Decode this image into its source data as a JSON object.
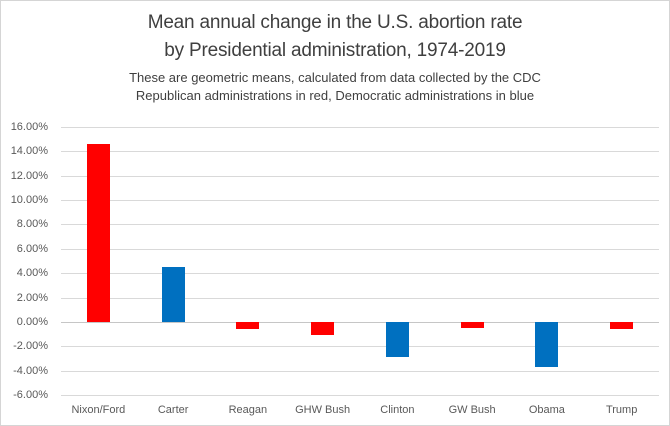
{
  "title": {
    "line1": "Mean annual change in the U.S. abortion rate",
    "line2": "by Presidential administration, 1974-2019"
  },
  "subtitle": {
    "line1": "These are geometric means, calculated from data collected by the CDC",
    "line2": "Republican administrations in red, Democratic administrations in blue"
  },
  "chart_data": {
    "type": "bar",
    "title": "Mean annual change in the U.S. abortion rate by Presidential administration, 1974-2019",
    "subtitle": [
      "These are geometric means, calculated from data collected by the CDC",
      "Republican administrations in red, Democratic administrations in blue"
    ],
    "categories": [
      "Nixon/Ford",
      "Carter",
      "Reagan",
      "GHW Bush",
      "Clinton",
      "GW Bush",
      "Obama",
      "Trump"
    ],
    "values": [
      14.6,
      4.5,
      -0.6,
      -1.1,
      -2.9,
      -0.5,
      -3.7,
      -0.6
    ],
    "parties": [
      "R",
      "D",
      "R",
      "R",
      "D",
      "R",
      "D",
      "R"
    ],
    "party_colors": {
      "R": "#ff0000",
      "D": "#0070c0"
    },
    "xlabel": "",
    "ylabel": "",
    "ylim": [
      -6,
      16
    ],
    "ytick_step": 2,
    "yticks": [
      {
        "value": 16,
        "label": "16.00%"
      },
      {
        "value": 14,
        "label": "14.00%"
      },
      {
        "value": 12,
        "label": "12.00%"
      },
      {
        "value": 10,
        "label": "10.00%"
      },
      {
        "value": 8,
        "label": "8.00%"
      },
      {
        "value": 6,
        "label": "6.00%"
      },
      {
        "value": 4,
        "label": "4.00%"
      },
      {
        "value": 2,
        "label": "2.00%"
      },
      {
        "value": 0,
        "label": "0.00%"
      },
      {
        "value": -2,
        "label": "-2.00%"
      },
      {
        "value": -4,
        "label": "-4.00%"
      },
      {
        "value": -6,
        "label": "-6.00%"
      }
    ],
    "grid": true,
    "legend": "none"
  }
}
